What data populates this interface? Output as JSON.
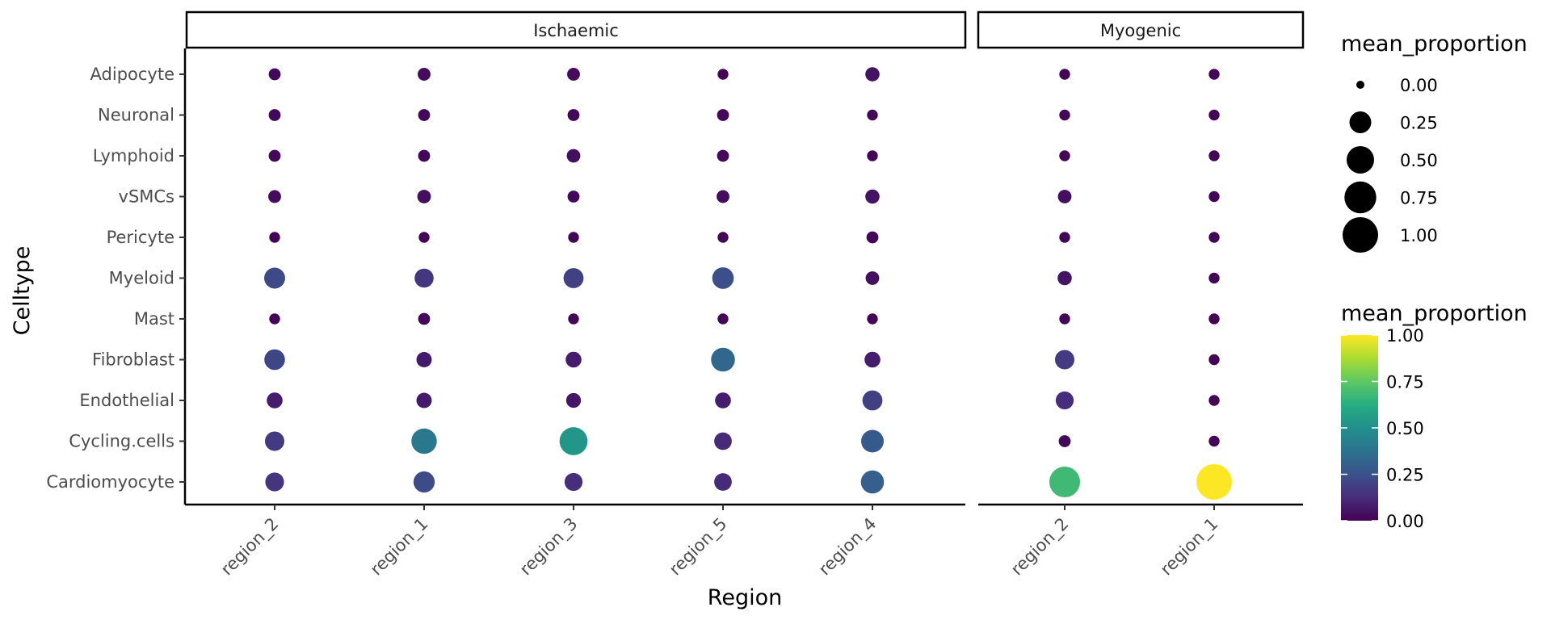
{
  "chart_data": {
    "type": "scatter",
    "subtype": "dot-plot-faceted",
    "xlabel": "Region",
    "ylabel": "Celltype",
    "celltypes": [
      "Adipocyte",
      "Neuronal",
      "Lymphoid",
      "vSMCs",
      "Pericyte",
      "Myeloid",
      "Mast",
      "Fibroblast",
      "Endothelial",
      "Cycling.cells",
      "Cardiomyocyte"
    ],
    "facets": [
      {
        "name": "Ischaemic",
        "regions": [
          "region_2",
          "region_1",
          "region_3",
          "region_5",
          "region_4"
        ],
        "values": [
          [
            0.02,
            0.03,
            0.03,
            0.01,
            0.05
          ],
          [
            0.02,
            0.02,
            0.02,
            0.02,
            0.01
          ],
          [
            0.02,
            0.02,
            0.04,
            0.02,
            0.01
          ],
          [
            0.03,
            0.04,
            0.02,
            0.03,
            0.05
          ],
          [
            0.01,
            0.01,
            0.01,
            0.01,
            0.02
          ],
          [
            0.22,
            0.16,
            0.19,
            0.24,
            0.04
          ],
          [
            0.01,
            0.02,
            0.01,
            0.01,
            0.01
          ],
          [
            0.21,
            0.07,
            0.08,
            0.33,
            0.08
          ],
          [
            0.08,
            0.07,
            0.06,
            0.08,
            0.19
          ],
          [
            0.17,
            0.4,
            0.53,
            0.12,
            0.28
          ],
          [
            0.15,
            0.23,
            0.13,
            0.12,
            0.3
          ]
        ]
      },
      {
        "name": "Myogenic",
        "regions": [
          "region_2",
          "region_1"
        ],
        "values": [
          [
            0.01,
            0.01
          ],
          [
            0.01,
            0.01
          ],
          [
            0.01,
            0.01
          ],
          [
            0.04,
            0.01
          ],
          [
            0.01,
            0.01
          ],
          [
            0.05,
            0.01
          ],
          [
            0.01,
            0.01
          ],
          [
            0.17,
            0.01
          ],
          [
            0.13,
            0.01
          ],
          [
            0.02,
            0.01
          ],
          [
            0.68,
            1.0
          ]
        ]
      }
    ],
    "size_legend": {
      "title": "mean_proportion",
      "breaks": [
        0.0,
        0.25,
        0.5,
        0.75,
        1.0
      ],
      "labels": [
        "0.00",
        "0.25",
        "0.50",
        "0.75",
        "1.00"
      ]
    },
    "color_legend": {
      "title": "mean_proportion",
      "colormap": "viridis",
      "range": [
        0,
        1
      ],
      "labels": [
        "1.00",
        "0.75",
        "0.50",
        "0.25",
        "0.00"
      ]
    },
    "grid": false,
    "legend_position": "right"
  }
}
